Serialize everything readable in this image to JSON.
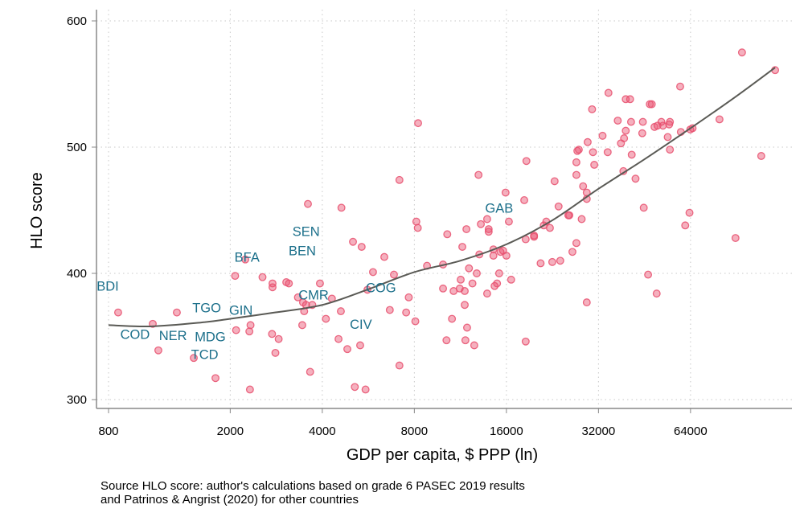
{
  "chart_data": {
    "type": "scatter",
    "xlabel": "GDP per capita, $ PPP (ln)",
    "ylabel": "HLO score",
    "x_scale": "log",
    "xlim": [
      760,
      125000
    ],
    "ylim": [
      293,
      608
    ],
    "x_ticks": [
      800,
      2000,
      4000,
      8000,
      16000,
      32000,
      64000
    ],
    "y_ticks": [
      300,
      400,
      500,
      600
    ],
    "grid": true,
    "colors": {
      "points": "#e8506e",
      "fit": "#5a5a55",
      "labels": "#1b6f8a"
    },
    "points": [
      [
        860,
        369
      ],
      [
        1116,
        360
      ],
      [
        1164,
        339
      ],
      [
        1338,
        369
      ],
      [
        1520,
        333
      ],
      [
        1790,
        317
      ],
      [
        2075,
        398
      ],
      [
        2090,
        355
      ],
      [
        2240,
        411
      ],
      [
        2330,
        359
      ],
      [
        2310,
        354
      ],
      [
        2320,
        308
      ],
      [
        2550,
        397
      ],
      [
        2750,
        392
      ],
      [
        2750,
        389
      ],
      [
        2740,
        352
      ],
      [
        2810,
        337
      ],
      [
        2880,
        348
      ],
      [
        3050,
        393
      ],
      [
        3110,
        392
      ],
      [
        3330,
        381
      ],
      [
        3460,
        377
      ],
      [
        3490,
        370
      ],
      [
        3540,
        375
      ],
      [
        3590,
        455
      ],
      [
        3440,
        359
      ],
      [
        3650,
        322
      ],
      [
        3930,
        392
      ],
      [
        4110,
        364
      ],
      [
        3710,
        375
      ],
      [
        4300,
        380
      ],
      [
        4620,
        452
      ],
      [
        4520,
        348
      ],
      [
        4600,
        370
      ],
      [
        4830,
        340
      ],
      [
        5040,
        425
      ],
      [
        5380,
        421
      ],
      [
        5320,
        343
      ],
      [
        5110,
        310
      ],
      [
        5540,
        308
      ],
      [
        8230,
        519
      ],
      [
        7150,
        474
      ],
      [
        6380,
        413
      ],
      [
        5860,
        401
      ],
      [
        6860,
        399
      ],
      [
        5620,
        387
      ],
      [
        7670,
        381
      ],
      [
        6650,
        371
      ],
      [
        7520,
        369
      ],
      [
        8060,
        362
      ],
      [
        7150,
        327
      ],
      [
        8800,
        406
      ],
      [
        9930,
        407
      ],
      [
        10250,
        431
      ],
      [
        8120,
        441
      ],
      [
        8210,
        436
      ],
      [
        11480,
        421
      ],
      [
        11840,
        435
      ],
      [
        12070,
        404
      ],
      [
        12800,
        400
      ],
      [
        11340,
        395
      ],
      [
        9930,
        388
      ],
      [
        10750,
        386
      ],
      [
        11260,
        388
      ],
      [
        11690,
        386
      ],
      [
        11690,
        375
      ],
      [
        12390,
        392
      ],
      [
        10620,
        364
      ],
      [
        11900,
        357
      ],
      [
        10190,
        347
      ],
      [
        11750,
        347
      ],
      [
        12560,
        343
      ],
      [
        13050,
        415
      ],
      [
        12970,
        478
      ],
      [
        13200,
        439
      ],
      [
        13840,
        443
      ],
      [
        14000,
        435
      ],
      [
        14000,
        433
      ],
      [
        14510,
        419
      ],
      [
        14510,
        414
      ],
      [
        15300,
        417
      ],
      [
        15600,
        418
      ],
      [
        16000,
        414
      ],
      [
        15150,
        400
      ],
      [
        14910,
        392
      ],
      [
        14640,
        390
      ],
      [
        13840,
        384
      ],
      [
        16580,
        395
      ],
      [
        15900,
        464
      ],
      [
        16300,
        441
      ],
      [
        18600,
        489
      ],
      [
        18300,
        458
      ],
      [
        18500,
        427
      ],
      [
        19700,
        430
      ],
      [
        19700,
        429
      ],
      [
        18500,
        346
      ],
      [
        20700,
        408
      ],
      [
        22600,
        409
      ],
      [
        24000,
        410
      ],
      [
        23000,
        473
      ],
      [
        23700,
        453
      ],
      [
        25500,
        446
      ],
      [
        26300,
        417
      ],
      [
        21200,
        438
      ],
      [
        22200,
        436
      ],
      [
        21600,
        441
      ],
      [
        27100,
        488
      ],
      [
        27100,
        478
      ],
      [
        27300,
        497
      ],
      [
        27100,
        424
      ],
      [
        94300,
        575
      ],
      [
        121000,
        561
      ],
      [
        59200,
        548
      ],
      [
        34500,
        543
      ],
      [
        39300,
        538
      ],
      [
        40600,
        538
      ],
      [
        47100,
        534
      ],
      [
        47800,
        534
      ],
      [
        30500,
        530
      ],
      [
        37000,
        521
      ],
      [
        40900,
        520
      ],
      [
        44700,
        520
      ],
      [
        48800,
        516
      ],
      [
        49900,
        517
      ],
      [
        52000,
        517
      ],
      [
        51400,
        520
      ],
      [
        54800,
        520
      ],
      [
        54500,
        518
      ],
      [
        59500,
        512
      ],
      [
        63900,
        514
      ],
      [
        65000,
        515
      ],
      [
        79600,
        522
      ],
      [
        33000,
        509
      ],
      [
        44500,
        511
      ],
      [
        39300,
        513
      ],
      [
        38800,
        507
      ],
      [
        37900,
        503
      ],
      [
        53900,
        508
      ],
      [
        29500,
        504
      ],
      [
        27600,
        498
      ],
      [
        30700,
        496
      ],
      [
        34300,
        496
      ],
      [
        54800,
        498
      ],
      [
        41100,
        494
      ],
      [
        31000,
        486
      ],
      [
        38600,
        481
      ],
      [
        42300,
        475
      ],
      [
        28500,
        469
      ],
      [
        29300,
        464
      ],
      [
        29300,
        459
      ],
      [
        25700,
        446
      ],
      [
        28200,
        443
      ],
      [
        109000,
        493
      ],
      [
        45000,
        452
      ],
      [
        63500,
        448
      ],
      [
        61500,
        438
      ],
      [
        89800,
        428
      ],
      [
        46500,
        399
      ],
      [
        49600,
        384
      ],
      [
        29300,
        377
      ]
    ],
    "fit_line": [
      [
        800,
        359
      ],
      [
        1100,
        358
      ],
      [
        1600,
        361
      ],
      [
        2000,
        364
      ],
      [
        2800,
        369
      ],
      [
        4000,
        375
      ],
      [
        5600,
        387
      ],
      [
        8000,
        401
      ],
      [
        11300,
        410
      ],
      [
        16000,
        423
      ],
      [
        22600,
        442
      ],
      [
        32000,
        467
      ],
      [
        45000,
        490
      ],
      [
        64000,
        515
      ],
      [
        90000,
        540
      ],
      [
        121000,
        563
      ]
    ],
    "country_labels": [
      {
        "text": "BDI",
        "gdp": 795,
        "hlo": 390
      },
      {
        "text": "TGO",
        "gdp": 1675,
        "hlo": 373
      },
      {
        "text": "GIN",
        "gdp": 2090,
        "hlo": 371
      },
      {
        "text": "COD",
        "gdp": 1116,
        "hlo": 352
      },
      {
        "text": "NER",
        "gdp": 1300,
        "hlo": 351
      },
      {
        "text": "MDG",
        "gdp": 1720,
        "hlo": 350
      },
      {
        "text": "TCD",
        "gdp": 1650,
        "hlo": 336
      },
      {
        "text": "BFA",
        "gdp": 2270,
        "hlo": 413
      },
      {
        "text": "SEN",
        "gdp": 3540,
        "hlo": 427
      },
      {
        "text": "BEN",
        "gdp": 3440,
        "hlo": 422
      },
      {
        "text": "CMR",
        "gdp": 3745,
        "hlo": 383
      },
      {
        "text": "COG",
        "gdp": 6220,
        "hlo": 389
      },
      {
        "text": "CIV",
        "gdp": 5350,
        "hlo": 360
      },
      {
        "text": "GAB",
        "gdp": 15150,
        "hlo": 452
      }
    ]
  },
  "note": {
    "line1": "Source HLO score: author's calculations based on grade 6 PASEC 2019 results",
    "line2": "and Patrinos & Angrist (2020) for other countries"
  }
}
